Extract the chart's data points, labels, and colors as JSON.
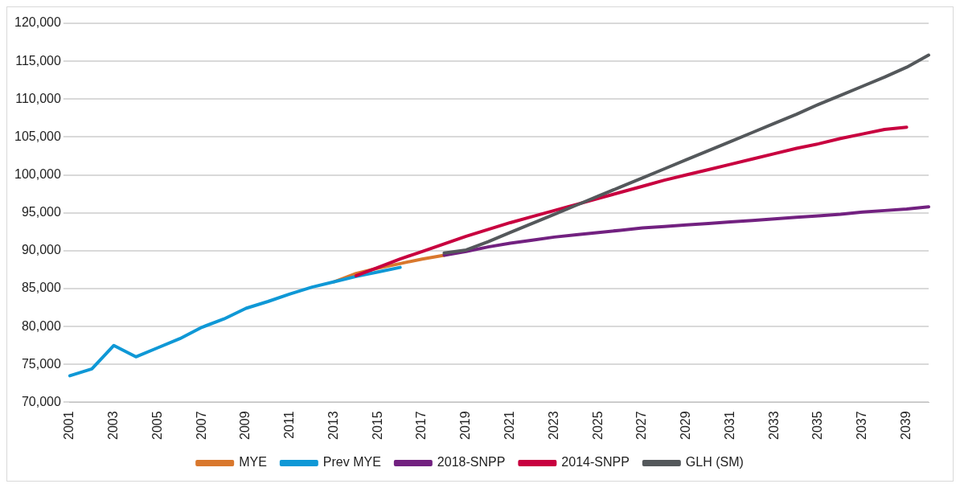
{
  "chart_data": {
    "type": "line",
    "categories": [
      "2001",
      null,
      "2003",
      null,
      "2005",
      null,
      "2007",
      null,
      "2009",
      null,
      "2011",
      null,
      "2013",
      null,
      "2015",
      null,
      "2017",
      null,
      "2019",
      null,
      "2021",
      null,
      "2023",
      null,
      "2025",
      null,
      "2027",
      null,
      "2029",
      null,
      "2031",
      null,
      "2033",
      null,
      "2035",
      null,
      "2037",
      null,
      "2039",
      null
    ],
    "ylim": [
      70000,
      120000
    ],
    "yticks": [
      {
        "value": 70000,
        "label": "70,000"
      },
      {
        "value": 75000,
        "label": "75,000"
      },
      {
        "value": 80000,
        "label": "80,000"
      },
      {
        "value": 85000,
        "label": "85,000"
      },
      {
        "value": 90000,
        "label": "90,000"
      },
      {
        "value": 95000,
        "label": "95,000"
      },
      {
        "value": 100000,
        "label": "100,000"
      },
      {
        "value": 105000,
        "label": "105,000"
      },
      {
        "value": 110000,
        "label": "110,000"
      },
      {
        "value": 115000,
        "label": "115,000"
      },
      {
        "value": 120000,
        "label": "120,000"
      }
    ],
    "grid": "y",
    "legend": "bottom",
    "marker": "none",
    "line_style": "solid",
    "series": [
      {
        "name": "MYE",
        "color": "#d9782d",
        "values": [
          null,
          null,
          null,
          null,
          null,
          null,
          null,
          null,
          null,
          null,
          null,
          null,
          85900,
          87000,
          87700,
          88300,
          88900,
          89400,
          null,
          null,
          null,
          null,
          null,
          null,
          null,
          null,
          null,
          null,
          null,
          null,
          null,
          null,
          null,
          null,
          null,
          null,
          null,
          null,
          null,
          null
        ]
      },
      {
        "name": "Prev MYE",
        "color": "#0f98d6",
        "values": [
          73500,
          74400,
          77500,
          76000,
          77200,
          78400,
          79900,
          81000,
          82400,
          83300,
          84300,
          85200,
          85900,
          86600,
          87200,
          87800,
          null,
          null,
          null,
          null,
          null,
          null,
          null,
          null,
          null,
          null,
          null,
          null,
          null,
          null,
          null,
          null,
          null,
          null,
          null,
          null,
          null,
          null,
          null,
          null
        ]
      },
      {
        "name": "2018-SNPP",
        "color": "#722180",
        "values": [
          null,
          null,
          null,
          null,
          null,
          null,
          null,
          null,
          null,
          null,
          null,
          null,
          null,
          null,
          null,
          null,
          null,
          89400,
          89900,
          90500,
          91000,
          91400,
          91800,
          92100,
          92400,
          92700,
          93000,
          93200,
          93400,
          93600,
          93800,
          94000,
          94200,
          94400,
          94600,
          94800,
          95100,
          95300,
          95500,
          95800
        ]
      },
      {
        "name": "2014-SNPP",
        "color": "#c8003f",
        "values": [
          null,
          null,
          null,
          null,
          null,
          null,
          null,
          null,
          null,
          null,
          null,
          null,
          null,
          86700,
          87800,
          88900,
          89900,
          90900,
          91900,
          92800,
          93700,
          94500,
          95300,
          96100,
          96900,
          97700,
          98500,
          99300,
          100000,
          100700,
          101400,
          102100,
          102800,
          103500,
          104100,
          104800,
          105400,
          106000,
          106300,
          null
        ]
      },
      {
        "name": "GLH (SM)",
        "color": "#54585b",
        "values": [
          null,
          null,
          null,
          null,
          null,
          null,
          null,
          null,
          null,
          null,
          null,
          null,
          null,
          null,
          null,
          null,
          null,
          89700,
          90100,
          91200,
          92400,
          93600,
          94800,
          96000,
          97200,
          98400,
          99600,
          100800,
          102000,
          103200,
          104400,
          105600,
          106800,
          108000,
          109300,
          110500,
          111700,
          112900,
          114200,
          115800
        ]
      }
    ]
  }
}
